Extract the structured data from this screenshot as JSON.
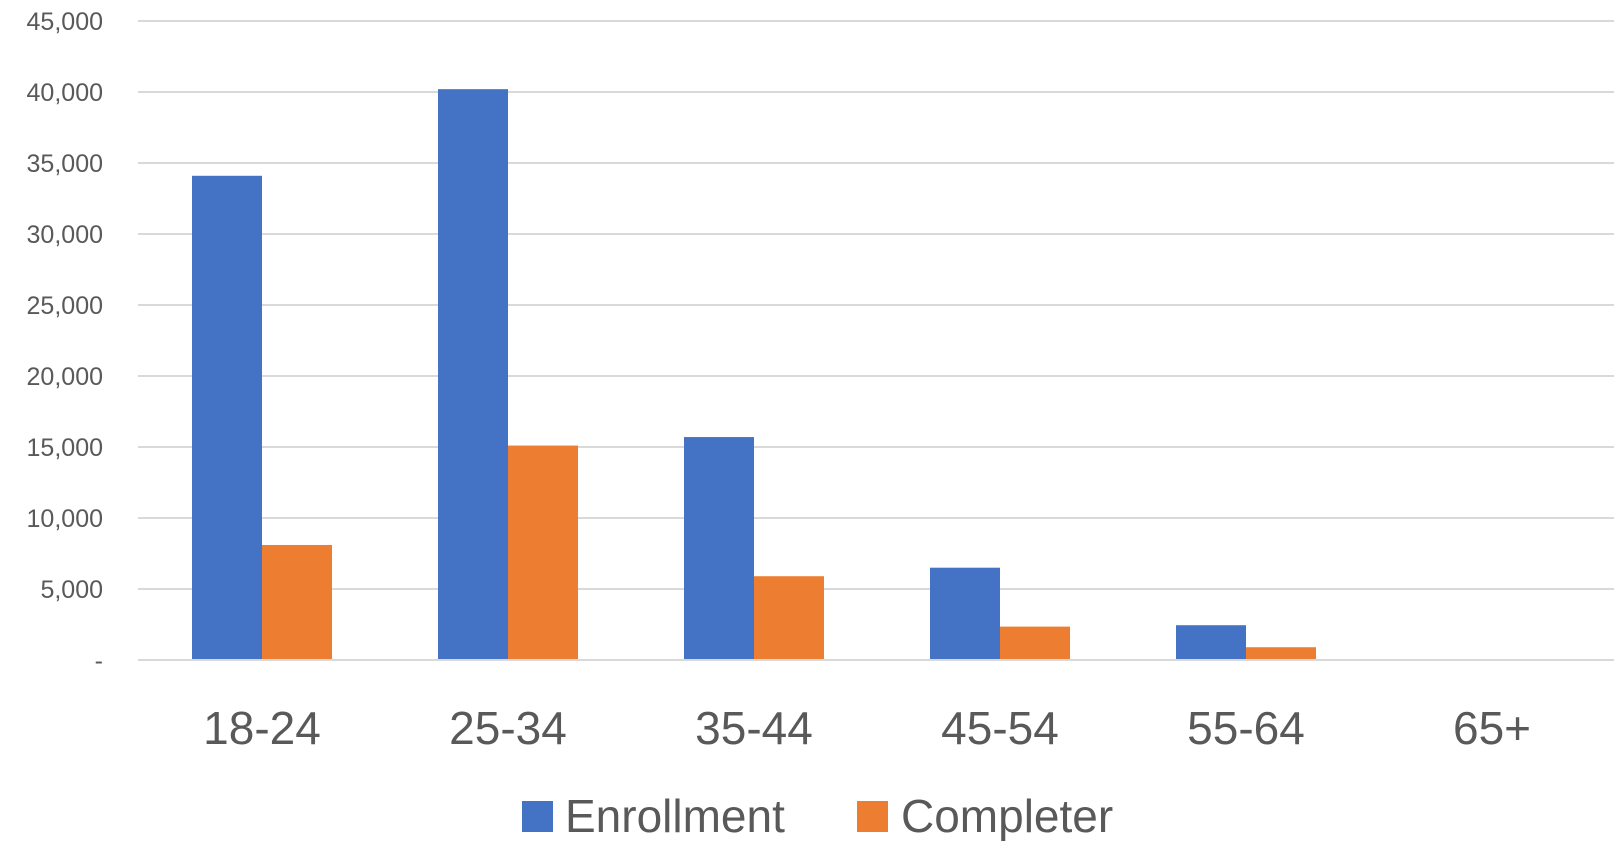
{
  "chart_data": {
    "type": "bar",
    "title": "",
    "xlabel": "",
    "ylabel": "",
    "categories": [
      "18-24",
      "25-34",
      "35-44",
      "45-54",
      "55-64",
      "65+"
    ],
    "series": [
      {
        "name": "Enrollment",
        "color": "#4472C4",
        "values": [
          34100,
          40200,
          15700,
          6500,
          2450,
          0
        ]
      },
      {
        "name": "Completer",
        "color": "#ED7D31",
        "values": [
          8100,
          15100,
          5900,
          2350,
          900,
          0
        ]
      }
    ],
    "ylim": [
      0,
      45000
    ],
    "y_ticks": [
      0,
      5000,
      10000,
      15000,
      20000,
      25000,
      30000,
      35000,
      40000,
      45000
    ],
    "y_tick_labels": [
      "-",
      "5,000",
      "10,000",
      "15,000",
      "20,000",
      "25,000",
      "30,000",
      "35,000",
      "40,000",
      "45,000"
    ],
    "grid": true,
    "legend_position": "bottom"
  }
}
